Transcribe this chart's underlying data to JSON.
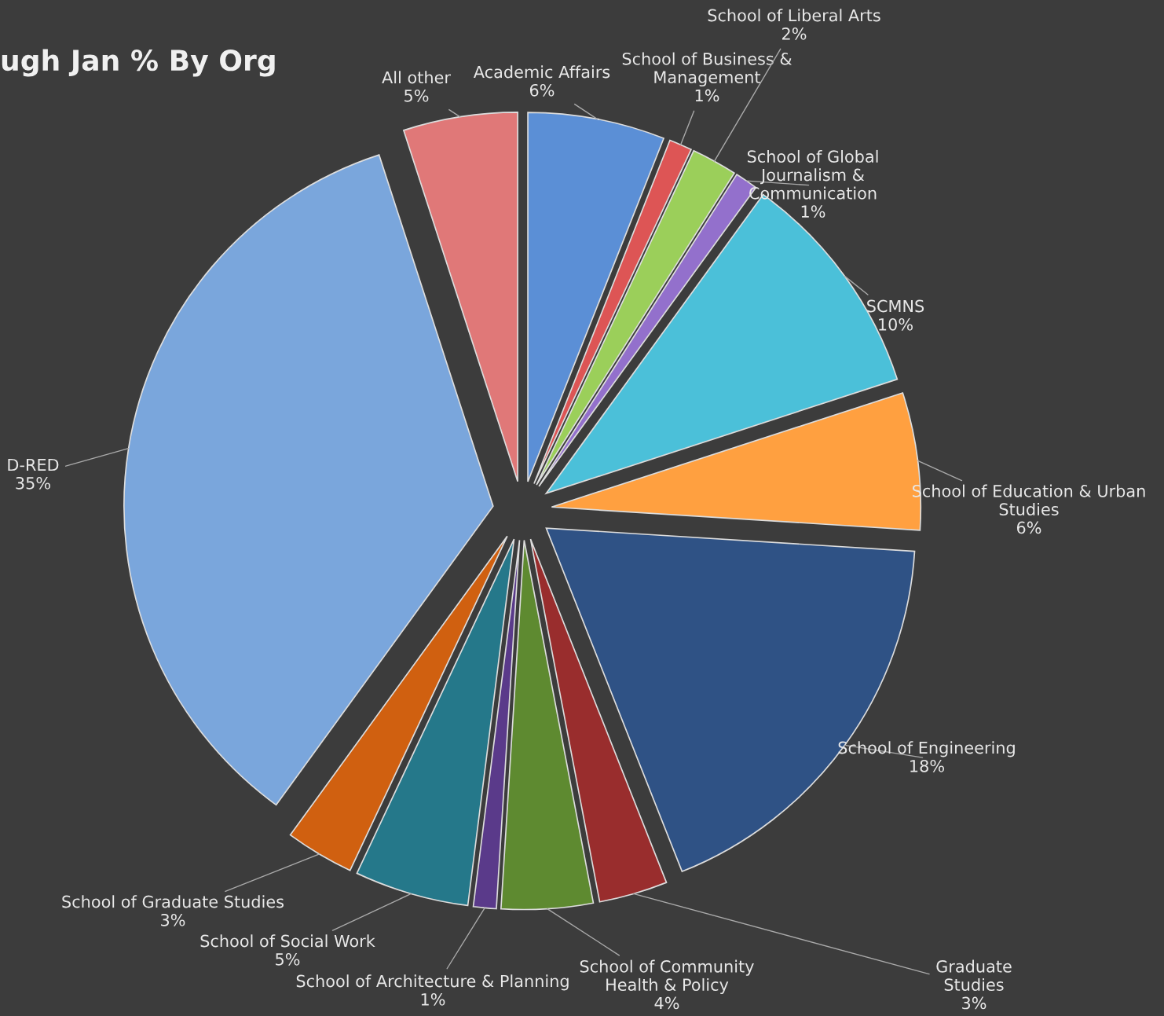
{
  "chart_data": {
    "type": "pie",
    "title": "ugh Jan % By Org",
    "categories": [
      "Academic Affairs",
      "School of Business & Management",
      "School of Liberal Arts",
      "School of Global Journalism & Communication",
      "SCMNS",
      "School of Education & Urban Studies",
      "School of Engineering",
      "Graduate Studies",
      "School of Community Health & Policy",
      "School of Architecture & Planning",
      "School of Social Work",
      "School of Graduate Studies",
      "D-RED",
      "All other"
    ],
    "values": [
      6,
      1,
      2,
      1,
      10,
      6,
      18,
      3,
      4,
      1,
      5,
      3,
      35,
      5
    ],
    "value_labels": [
      "6%",
      "1%",
      "2%",
      "1%",
      "10%",
      "6%",
      "18%",
      "3%",
      "4%",
      "1%",
      "5%",
      "3%",
      "35%",
      "5%"
    ],
    "colors": [
      "#5b8fd6",
      "#dd5555",
      "#9bcf5a",
      "#9370cc",
      "#4bc0d9",
      "#ffa040",
      "#2f5285",
      "#992d2d",
      "#5e8a30",
      "#5a3a8a",
      "#25788a",
      "#d06010",
      "#7aa6dc",
      "#e07878"
    ],
    "legend": false
  }
}
